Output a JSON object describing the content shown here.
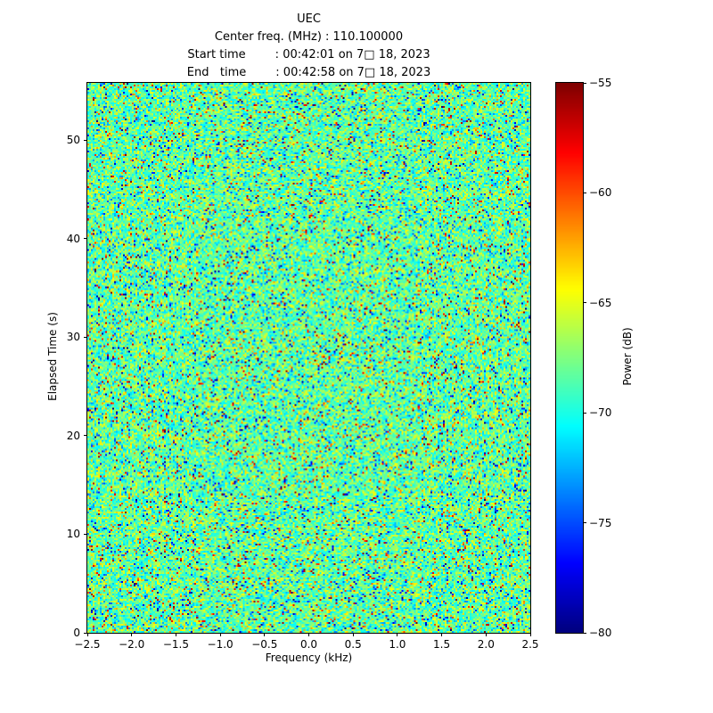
{
  "header": {
    "title": "UEC",
    "center_freq_line": "Center freq. (MHz) : 110.100000",
    "start_time_line": "Start time        : 00:42:01 on 7□ 18, 2023",
    "end_time_line": "End   time        : 00:42:58 on 7□ 18, 2023"
  },
  "chart_data": {
    "type": "heatmap",
    "title": "UEC",
    "xlabel": "Frequency (kHz)",
    "ylabel": "Elapsed Time (s)",
    "colorbar_label": "Power (dB)",
    "colormap": "jet",
    "center_freq_mhz": "110.100000",
    "start_time": "00:42:01 on 7□ 18, 2023",
    "end_time": "00:42:58 on 7□ 18, 2023",
    "x_range": [
      -2.5,
      2.5
    ],
    "y_range": [
      0,
      55.8
    ],
    "value_range_db": [
      -80,
      -55
    ],
    "x_ticks": [
      {
        "value": -2.5,
        "label": "−2.5"
      },
      {
        "value": -2.0,
        "label": "−2.0"
      },
      {
        "value": -1.5,
        "label": "−1.5"
      },
      {
        "value": -1.0,
        "label": "−1.0"
      },
      {
        "value": -0.5,
        "label": "−0.5"
      },
      {
        "value": 0.0,
        "label": "0.0"
      },
      {
        "value": 0.5,
        "label": "0.5"
      },
      {
        "value": 1.0,
        "label": "1.0"
      },
      {
        "value": 1.5,
        "label": "1.5"
      },
      {
        "value": 2.0,
        "label": "2.0"
      },
      {
        "value": 2.5,
        "label": "2.5"
      }
    ],
    "y_ticks": [
      {
        "value": 0,
        "label": "0"
      },
      {
        "value": 10,
        "label": "10"
      },
      {
        "value": 20,
        "label": "20"
      },
      {
        "value": 30,
        "label": "30"
      },
      {
        "value": 40,
        "label": "40"
      },
      {
        "value": 50,
        "label": "50"
      }
    ],
    "colorbar_ticks": [
      {
        "value": -55,
        "label": "−55"
      },
      {
        "value": -60,
        "label": "−60"
      },
      {
        "value": -65,
        "label": "−65"
      },
      {
        "value": -70,
        "label": "−70"
      },
      {
        "value": -75,
        "label": "−75"
      },
      {
        "value": -80,
        "label": "−80"
      }
    ],
    "noise": {
      "seed": 42,
      "cols": 248,
      "rows": 308,
      "mean_db": -68.3,
      "std_db": 2.2,
      "outlier_fraction": 0.12,
      "description": "Uniform speckle noise field across entire spectrogram; no coherent signal visible"
    }
  }
}
